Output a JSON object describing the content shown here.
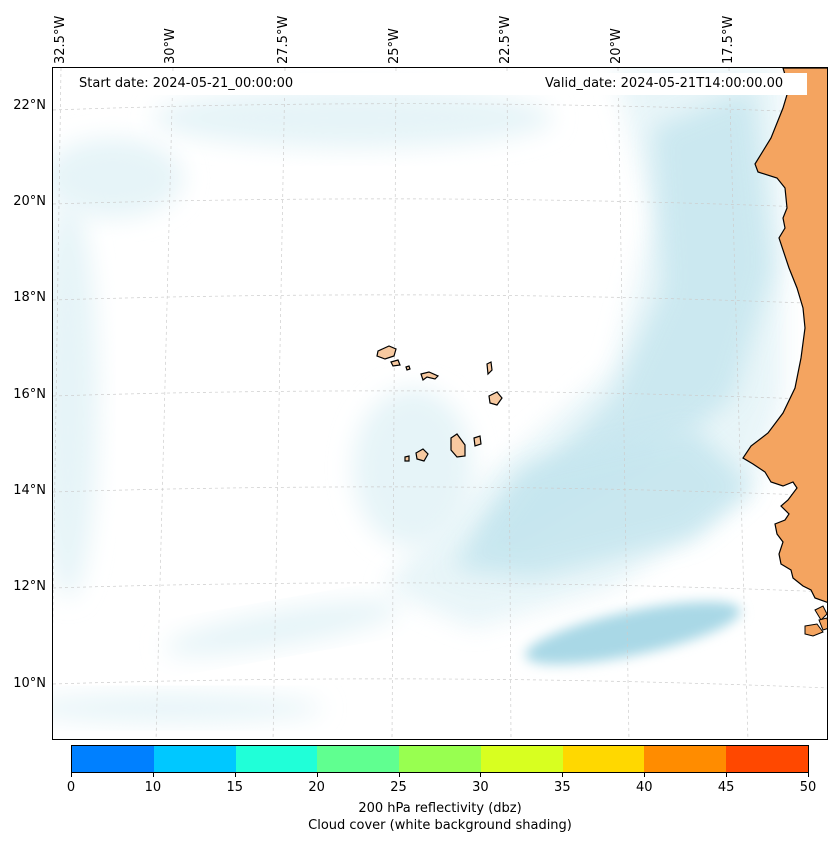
{
  "map": {
    "start_date": "Start date: 2024-05-21_00:00:00",
    "valid_date": "Valid_date: 2024-05-21T14:00:00.00",
    "lon_labels": [
      "32.5°W",
      "30°W",
      "27.5°W",
      "25°W",
      "22.5°W",
      "20°W",
      "17.5°W"
    ],
    "lat_labels": [
      "22°N",
      "20°N",
      "18°N",
      "16°N",
      "14°N",
      "12°N",
      "10°N"
    ],
    "colors": {
      "land": "#f4a460",
      "island_land": "#f7c9a0",
      "cloud_light": "#e6f4f8",
      "cloud_mid": "#c6e6ef",
      "cloud_dense": "#a9d8e6",
      "grid": "#cccccc"
    }
  },
  "colorbar": {
    "ticks": [
      "0",
      "10",
      "15",
      "20",
      "25",
      "30",
      "35",
      "40",
      "45",
      "50"
    ],
    "colors": [
      "#0080ff",
      "#00c8ff",
      "#20ffd8",
      "#60ff90",
      "#98ff50",
      "#d8ff20",
      "#ffd800",
      "#ff8c00",
      "#ff4800"
    ],
    "label": "200 hPa reflectivity (dbz)",
    "sublabel": "Cloud cover (white background shading)"
  }
}
